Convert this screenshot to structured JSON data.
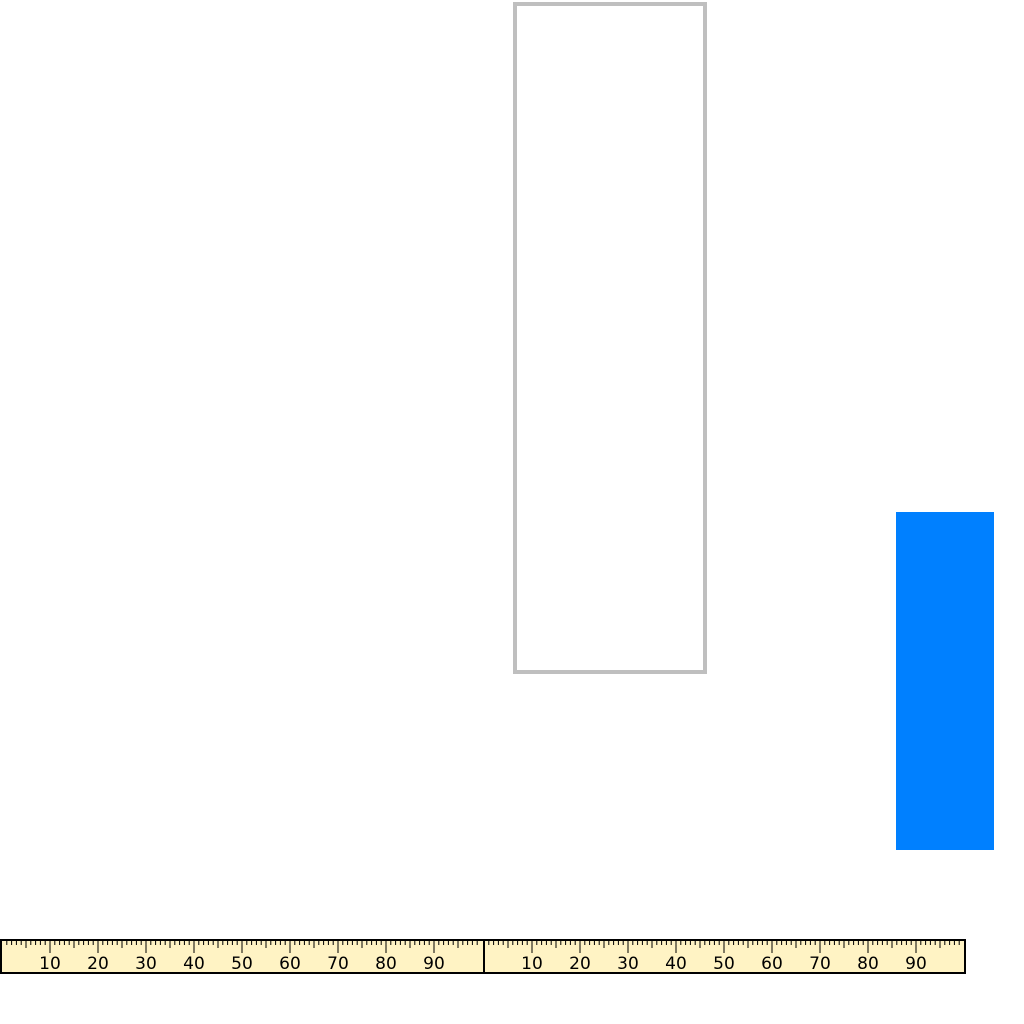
{
  "colors": {
    "page_background": "#ffffff",
    "outline_box_border": "#bfbfbf",
    "blue_block": "#0080ff",
    "ruler_background": "#fff3c4",
    "ruler_ink": "#000000"
  },
  "ruler": {
    "segments": [
      {
        "labels": [
          "10",
          "20",
          "30",
          "40",
          "50",
          "60",
          "70",
          "80",
          "90"
        ]
      },
      {
        "labels": [
          "10",
          "20",
          "30",
          "40",
          "50",
          "60",
          "70",
          "80",
          "90"
        ]
      }
    ]
  }
}
